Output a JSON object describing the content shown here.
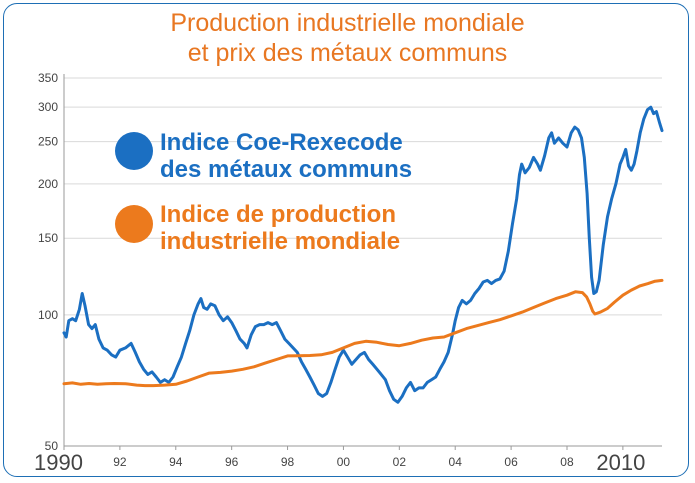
{
  "title_lines": [
    "Production industrielle mondiale",
    "et prix des métaux communs"
  ],
  "colors": {
    "metals": "#1b6fc2",
    "production": "#ec7a1d",
    "title": "#e87722",
    "grid": "#d9d9d9",
    "frame": "#1e6fb5"
  },
  "chart_data": {
    "type": "line",
    "title": "Production industrielle mondiale et prix des métaux communs",
    "xlabel": "",
    "ylabel": "",
    "y_scale": "log",
    "ylim": [
      50,
      350
    ],
    "xlim": [
      1990,
      2011.4
    ],
    "grid": "horizontal",
    "legend_position": "top-left",
    "yticks": [
      50,
      100,
      150,
      200,
      250,
      300,
      350
    ],
    "xticks": [
      {
        "value": 1990,
        "label": "1990",
        "size": "large"
      },
      {
        "value": 1992,
        "label": "92",
        "size": "small"
      },
      {
        "value": 1994,
        "label": "94",
        "size": "small"
      },
      {
        "value": 1996,
        "label": "96",
        "size": "small"
      },
      {
        "value": 1998,
        "label": "98",
        "size": "small"
      },
      {
        "value": 2000,
        "label": "00",
        "size": "small"
      },
      {
        "value": 2002,
        "label": "02",
        "size": "small"
      },
      {
        "value": 2004,
        "label": "04",
        "size": "small"
      },
      {
        "value": 2006,
        "label": "06",
        "size": "small"
      },
      {
        "value": 2008,
        "label": "08",
        "size": "small"
      },
      {
        "value": 2010,
        "label": "2010",
        "size": "large"
      }
    ],
    "series": [
      {
        "name": "Indice Coe-Rexecode des métaux communs",
        "legend_lines": [
          "Indice Coe-Rexecode",
          "des métaux communs"
        ],
        "color": "#1b6fc2",
        "points": [
          [
            1990.0,
            91
          ],
          [
            1990.08,
            89
          ],
          [
            1990.17,
            97
          ],
          [
            1990.3,
            98
          ],
          [
            1990.42,
            97
          ],
          [
            1990.55,
            103
          ],
          [
            1990.65,
            112
          ],
          [
            1990.75,
            105
          ],
          [
            1990.88,
            95
          ],
          [
            1991.0,
            93
          ],
          [
            1991.12,
            95
          ],
          [
            1991.25,
            88
          ],
          [
            1991.4,
            84
          ],
          [
            1991.55,
            83
          ],
          [
            1991.7,
            81
          ],
          [
            1991.85,
            80
          ],
          [
            1992.0,
            83
          ],
          [
            1992.2,
            84
          ],
          [
            1992.4,
            86
          ],
          [
            1992.55,
            82
          ],
          [
            1992.7,
            78
          ],
          [
            1992.85,
            75
          ],
          [
            1993.0,
            73
          ],
          [
            1993.15,
            74
          ],
          [
            1993.3,
            72
          ],
          [
            1993.45,
            70
          ],
          [
            1993.6,
            71
          ],
          [
            1993.75,
            70
          ],
          [
            1993.9,
            72
          ],
          [
            1994.05,
            76
          ],
          [
            1994.2,
            80
          ],
          [
            1994.35,
            86
          ],
          [
            1994.5,
            92
          ],
          [
            1994.65,
            100
          ],
          [
            1994.8,
            106
          ],
          [
            1994.9,
            109
          ],
          [
            1995.0,
            104
          ],
          [
            1995.12,
            103
          ],
          [
            1995.25,
            106
          ],
          [
            1995.4,
            105
          ],
          [
            1995.55,
            100
          ],
          [
            1995.7,
            97
          ],
          [
            1995.85,
            99
          ],
          [
            1996.0,
            96
          ],
          [
            1996.15,
            92
          ],
          [
            1996.3,
            88
          ],
          [
            1996.45,
            86
          ],
          [
            1996.55,
            84
          ],
          [
            1996.7,
            90
          ],
          [
            1996.85,
            94
          ],
          [
            1997.0,
            95
          ],
          [
            1997.15,
            95
          ],
          [
            1997.3,
            96
          ],
          [
            1997.45,
            95
          ],
          [
            1997.6,
            96
          ],
          [
            1997.75,
            92
          ],
          [
            1997.9,
            88
          ],
          [
            1998.05,
            86
          ],
          [
            1998.2,
            84
          ],
          [
            1998.35,
            82
          ],
          [
            1998.5,
            78
          ],
          [
            1998.65,
            75
          ],
          [
            1998.8,
            72
          ],
          [
            1998.95,
            69
          ],
          [
            1999.1,
            66
          ],
          [
            1999.25,
            65
          ],
          [
            1999.4,
            66
          ],
          [
            1999.55,
            70
          ],
          [
            1999.7,
            75
          ],
          [
            1999.85,
            80
          ],
          [
            2000.0,
            83
          ],
          [
            2000.15,
            80
          ],
          [
            2000.3,
            77
          ],
          [
            2000.45,
            79
          ],
          [
            2000.6,
            81
          ],
          [
            2000.75,
            82
          ],
          [
            2000.9,
            79
          ],
          [
            2001.05,
            77
          ],
          [
            2001.2,
            75
          ],
          [
            2001.35,
            73
          ],
          [
            2001.5,
            71
          ],
          [
            2001.65,
            67
          ],
          [
            2001.8,
            64
          ],
          [
            2001.95,
            63
          ],
          [
            2002.1,
            65
          ],
          [
            2002.25,
            68
          ],
          [
            2002.4,
            70
          ],
          [
            2002.55,
            67
          ],
          [
            2002.7,
            68
          ],
          [
            2002.85,
            68
          ],
          [
            2003.0,
            70
          ],
          [
            2003.15,
            71
          ],
          [
            2003.3,
            72
          ],
          [
            2003.45,
            75
          ],
          [
            2003.6,
            78
          ],
          [
            2003.75,
            82
          ],
          [
            2003.9,
            90
          ],
          [
            2004.0,
            97
          ],
          [
            2004.12,
            104
          ],
          [
            2004.25,
            108
          ],
          [
            2004.4,
            106
          ],
          [
            2004.55,
            108
          ],
          [
            2004.7,
            112
          ],
          [
            2004.85,
            115
          ],
          [
            2005.0,
            119
          ],
          [
            2005.15,
            120
          ],
          [
            2005.3,
            118
          ],
          [
            2005.45,
            120
          ],
          [
            2005.6,
            121
          ],
          [
            2005.75,
            126
          ],
          [
            2005.9,
            140
          ],
          [
            2006.05,
            162
          ],
          [
            2006.2,
            185
          ],
          [
            2006.3,
            210
          ],
          [
            2006.38,
            222
          ],
          [
            2006.5,
            212
          ],
          [
            2006.65,
            218
          ],
          [
            2006.8,
            230
          ],
          [
            2006.95,
            222
          ],
          [
            2007.05,
            215
          ],
          [
            2007.2,
            232
          ],
          [
            2007.35,
            255
          ],
          [
            2007.45,
            262
          ],
          [
            2007.55,
            248
          ],
          [
            2007.7,
            255
          ],
          [
            2007.85,
            248
          ],
          [
            2008.0,
            243
          ],
          [
            2008.15,
            262
          ],
          [
            2008.28,
            270
          ],
          [
            2008.4,
            266
          ],
          [
            2008.52,
            255
          ],
          [
            2008.62,
            230
          ],
          [
            2008.72,
            190
          ],
          [
            2008.8,
            150
          ],
          [
            2008.88,
            122
          ],
          [
            2008.96,
            112
          ],
          [
            2009.05,
            113
          ],
          [
            2009.15,
            120
          ],
          [
            2009.3,
            145
          ],
          [
            2009.45,
            168
          ],
          [
            2009.6,
            185
          ],
          [
            2009.75,
            200
          ],
          [
            2009.9,
            222
          ],
          [
            2010.0,
            230
          ],
          [
            2010.1,
            240
          ],
          [
            2010.2,
            220
          ],
          [
            2010.3,
            215
          ],
          [
            2010.4,
            222
          ],
          [
            2010.5,
            238
          ],
          [
            2010.62,
            262
          ],
          [
            2010.75,
            282
          ],
          [
            2010.88,
            296
          ],
          [
            2011.0,
            300
          ],
          [
            2011.1,
            290
          ],
          [
            2011.2,
            293
          ],
          [
            2011.32,
            275
          ],
          [
            2011.4,
            265
          ]
        ]
      },
      {
        "name": "Indice de production industrielle mondiale",
        "legend_lines": [
          "Indice de production",
          "industrielle mondiale"
        ],
        "color": "#ec7a1d",
        "points": [
          [
            1990.0,
            69.5
          ],
          [
            1990.3,
            69.8
          ],
          [
            1990.6,
            69.3
          ],
          [
            1990.9,
            69.6
          ],
          [
            1991.2,
            69.3
          ],
          [
            1991.5,
            69.5
          ],
          [
            1991.8,
            69.6
          ],
          [
            1992.2,
            69.5
          ],
          [
            1992.6,
            69.0
          ],
          [
            1992.9,
            68.8
          ],
          [
            1993.2,
            68.8
          ],
          [
            1993.6,
            69.0
          ],
          [
            1994.0,
            69.3
          ],
          [
            1994.4,
            70.5
          ],
          [
            1994.8,
            72.0
          ],
          [
            1995.2,
            73.5
          ],
          [
            1995.6,
            73.8
          ],
          [
            1996.0,
            74.3
          ],
          [
            1996.4,
            75.0
          ],
          [
            1996.8,
            76.0
          ],
          [
            1997.2,
            77.5
          ],
          [
            1997.6,
            79.0
          ],
          [
            1998.0,
            80.5
          ],
          [
            1998.4,
            80.6
          ],
          [
            1998.8,
            80.7
          ],
          [
            1999.2,
            81.0
          ],
          [
            1999.6,
            82.0
          ],
          [
            2000.0,
            84.0
          ],
          [
            2000.4,
            86.0
          ],
          [
            2000.8,
            87.0
          ],
          [
            2001.2,
            86.5
          ],
          [
            2001.6,
            85.5
          ],
          [
            2002.0,
            85.0
          ],
          [
            2002.4,
            86.0
          ],
          [
            2002.8,
            87.5
          ],
          [
            2003.2,
            88.5
          ],
          [
            2003.6,
            89.0
          ],
          [
            2004.0,
            91.0
          ],
          [
            2004.4,
            93.0
          ],
          [
            2004.8,
            94.5
          ],
          [
            2005.2,
            96.0
          ],
          [
            2005.6,
            97.5
          ],
          [
            2006.0,
            99.5
          ],
          [
            2006.4,
            101.5
          ],
          [
            2006.8,
            104.0
          ],
          [
            2007.2,
            106.5
          ],
          [
            2007.6,
            109.0
          ],
          [
            2008.0,
            111.0
          ],
          [
            2008.3,
            113.0
          ],
          [
            2008.55,
            112.5
          ],
          [
            2008.7,
            110.0
          ],
          [
            2008.82,
            106.0
          ],
          [
            2008.92,
            102.0
          ],
          [
            2009.0,
            100.5
          ],
          [
            2009.2,
            101.5
          ],
          [
            2009.45,
            103.5
          ],
          [
            2009.7,
            107.0
          ],
          [
            2010.0,
            111.0
          ],
          [
            2010.3,
            114.0
          ],
          [
            2010.6,
            116.5
          ],
          [
            2010.9,
            118.0
          ],
          [
            2011.15,
            119.5
          ],
          [
            2011.4,
            120.0
          ]
        ]
      }
    ]
  }
}
